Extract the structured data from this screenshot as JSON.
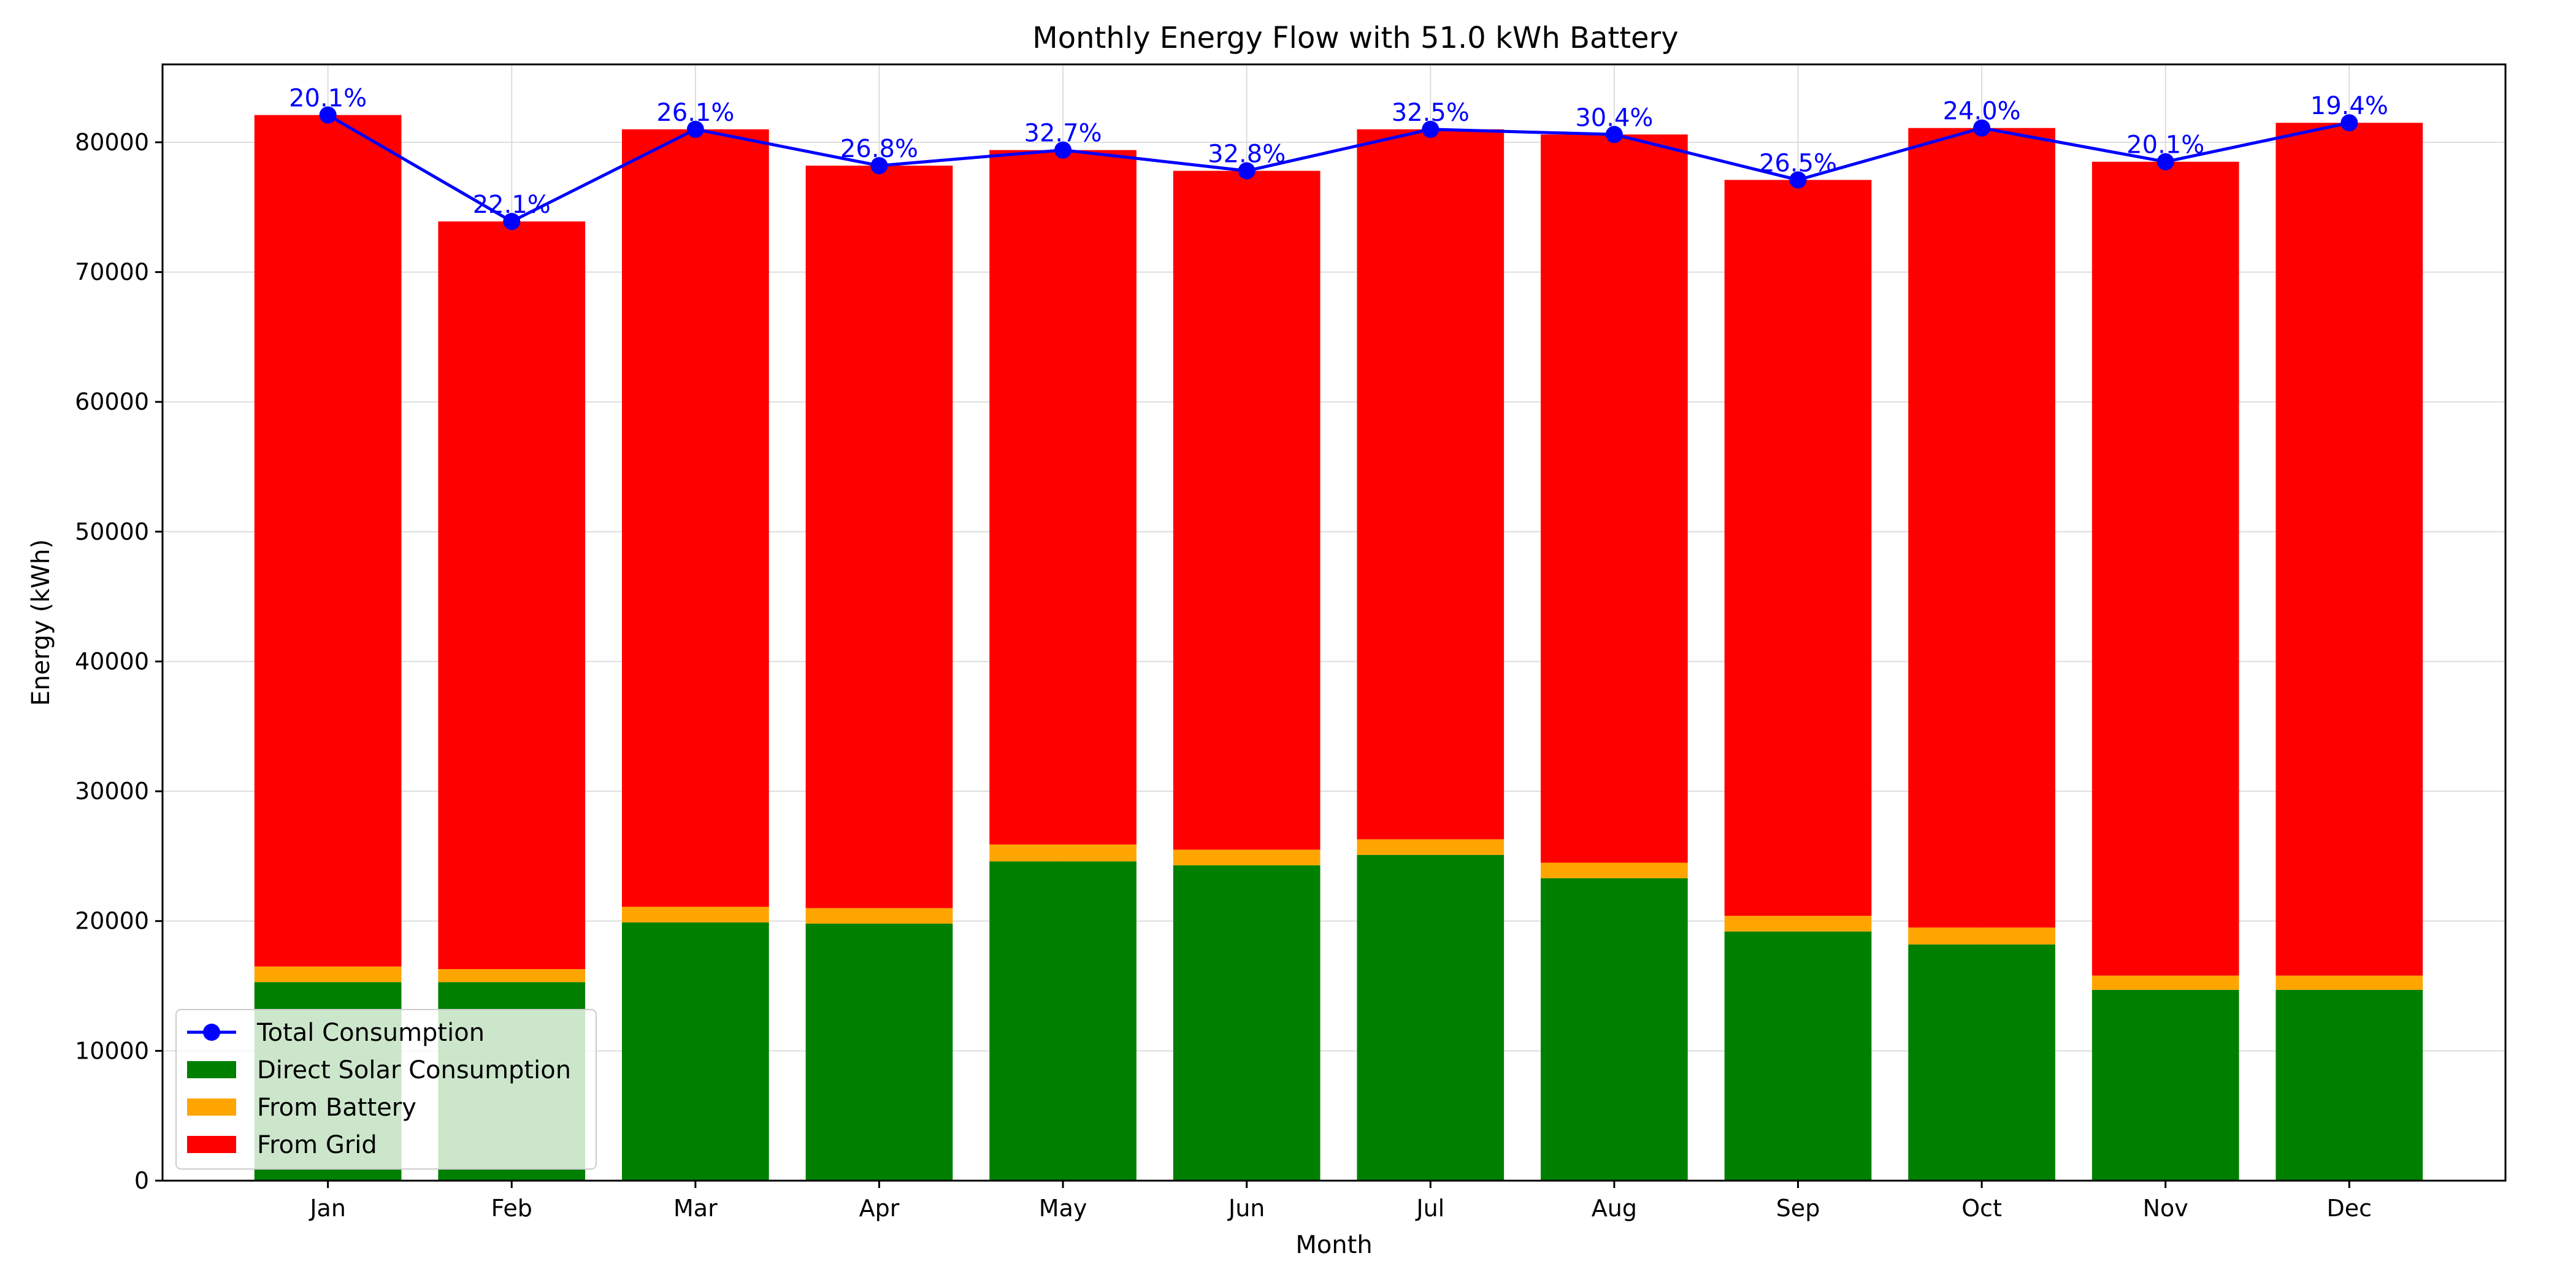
{
  "chart_data": {
    "type": "bar",
    "stacked": true,
    "title": "Monthly Energy Flow with 51.0 kWh Battery",
    "xlabel": "Month",
    "ylabel": "Energy (kWh)",
    "ylim": [
      0,
      86000
    ],
    "yticks": [
      0,
      10000,
      20000,
      30000,
      40000,
      50000,
      60000,
      70000,
      80000
    ],
    "grid": true,
    "legend_position": "lower-left",
    "categories": [
      "Jan",
      "Feb",
      "Mar",
      "Apr",
      "May",
      "Jun",
      "Jul",
      "Aug",
      "Sep",
      "Oct",
      "Nov",
      "Dec"
    ],
    "series": [
      {
        "name": "Direct Solar Consumption",
        "kind": "bar",
        "color": "#008000",
        "values": [
          15300,
          15300,
          19900,
          19800,
          24600,
          24300,
          25100,
          23300,
          19200,
          18200,
          14700,
          14700
        ]
      },
      {
        "name": "From Battery",
        "kind": "bar",
        "color": "#ffa500",
        "values": [
          1200,
          1000,
          1200,
          1200,
          1300,
          1200,
          1200,
          1200,
          1200,
          1300,
          1100,
          1100
        ]
      },
      {
        "name": "From Grid",
        "kind": "bar",
        "color": "#ff0000",
        "values": [
          65600,
          57600,
          59900,
          57200,
          53500,
          52300,
          54700,
          56100,
          56700,
          61600,
          62700,
          65700
        ]
      },
      {
        "name": "Total Consumption",
        "kind": "line",
        "color": "#0000ff",
        "values": [
          82100,
          73900,
          81000,
          78200,
          79400,
          77800,
          81000,
          80600,
          77100,
          81100,
          78500,
          81500
        ]
      }
    ],
    "point_labels": [
      "20.1%",
      "22.1%",
      "26.1%",
      "26.8%",
      "32.7%",
      "32.8%",
      "32.5%",
      "30.4%",
      "26.5%",
      "24.0%",
      "20.1%",
      "19.4%"
    ],
    "legend_order": [
      "Total Consumption",
      "Direct Solar Consumption",
      "From Battery",
      "From Grid"
    ]
  }
}
